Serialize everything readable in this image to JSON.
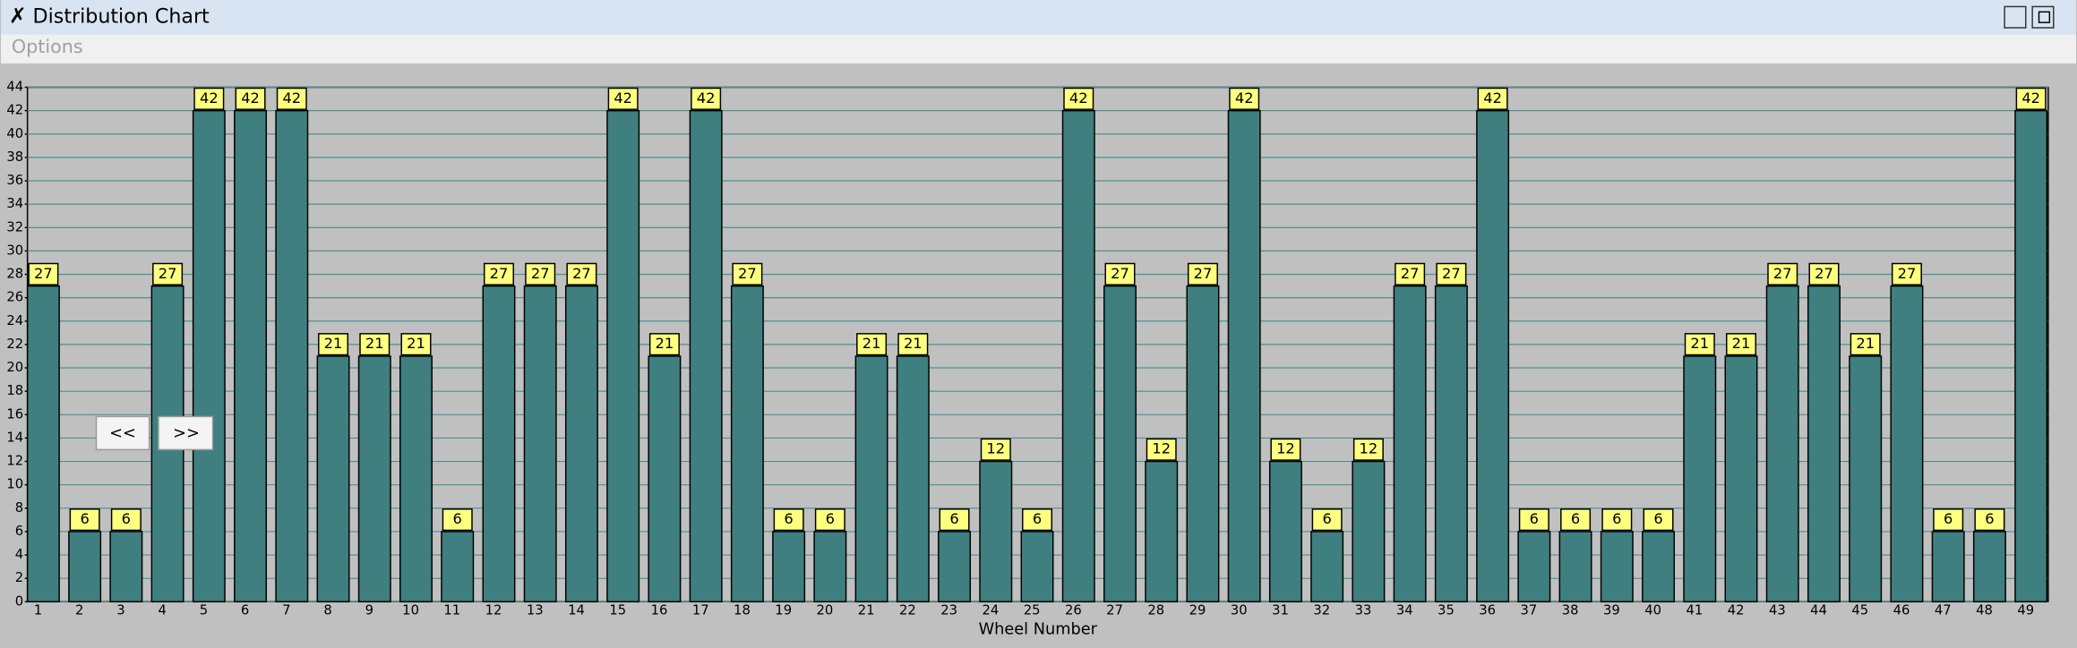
{
  "window": {
    "title": "Distribution Chart",
    "menu": [
      "Options"
    ],
    "buttons": [
      "<<",
      ">>"
    ]
  },
  "chart_data": {
    "type": "bar",
    "xlabel": "Wheel Number",
    "categories": [
      "1",
      "2",
      "3",
      "4",
      "5",
      "6",
      "7",
      "8",
      "9",
      "10",
      "11",
      "12",
      "13",
      "14",
      "15",
      "16",
      "17",
      "18",
      "19",
      "20",
      "21",
      "22",
      "23",
      "24",
      "25",
      "26",
      "27",
      "28",
      "29",
      "30",
      "31",
      "32",
      "33",
      "34",
      "35",
      "36",
      "37",
      "38",
      "39",
      "40",
      "41",
      "42",
      "43",
      "44",
      "45",
      "46",
      "47",
      "48",
      "49"
    ],
    "values": [
      27,
      6,
      6,
      27,
      42,
      42,
      42,
      21,
      21,
      21,
      6,
      27,
      27,
      27,
      42,
      21,
      42,
      27,
      6,
      6,
      21,
      21,
      6,
      12,
      6,
      42,
      27,
      12,
      27,
      42,
      12,
      6,
      12,
      27,
      27,
      42,
      6,
      6,
      6,
      6,
      21,
      21,
      27,
      27,
      21,
      27,
      6,
      6,
      42
    ],
    "color": "#3f7f7f",
    "ylim": [
      0,
      44
    ],
    "yticks": [
      0,
      2,
      4,
      6,
      8,
      10,
      12,
      14,
      16,
      18,
      20,
      22,
      24,
      26,
      28,
      30,
      32,
      34,
      36,
      38,
      40,
      42,
      44
    ],
    "grid": true
  }
}
